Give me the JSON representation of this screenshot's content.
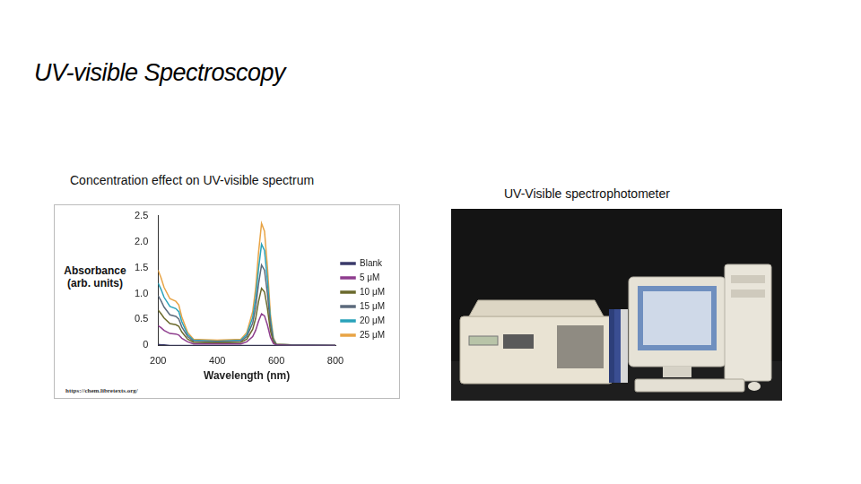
{
  "slide": {
    "title": "UV-visible Spectroscopy",
    "left_caption": "Concentration effect on UV-visible spectrum",
    "right_caption": "UV-Visible spectrophotometer",
    "chart_source": "https://chem.libretexts.org/"
  },
  "chart_data": {
    "type": "line",
    "x_label": "Wavelength (nm)",
    "y_label": "Absorbance (arb. units)",
    "x": [
      200,
      210,
      220,
      240,
      260,
      270,
      280,
      300,
      320,
      400,
      480,
      500,
      520,
      530,
      540,
      550,
      560,
      570,
      580,
      590,
      600,
      650,
      800
    ],
    "series": [
      {
        "name": "Blank",
        "color": "#3b3b6b",
        "values": [
          0.02,
          0.01,
          0.01,
          0,
          0,
          0,
          0,
          0,
          0,
          0,
          0,
          0,
          0,
          0,
          0,
          0,
          0,
          0,
          0,
          0,
          0,
          0,
          0
        ]
      },
      {
        "name": "5 μM",
        "color": "#8e3d8e",
        "values": [
          0.38,
          0.34,
          0.29,
          0.23,
          0.22,
          0.2,
          0.14,
          0.07,
          0.03,
          0.03,
          0.03,
          0.07,
          0.17,
          0.29,
          0.47,
          0.61,
          0.57,
          0.39,
          0.16,
          0.04,
          0.01,
          0,
          0
        ]
      },
      {
        "name": "10 μM",
        "color": "#6b6a2c",
        "values": [
          0.68,
          0.61,
          0.53,
          0.42,
          0.4,
          0.37,
          0.26,
          0.12,
          0.06,
          0.05,
          0.06,
          0.12,
          0.31,
          0.52,
          0.85,
          1.1,
          1.03,
          0.71,
          0.28,
          0.07,
          0.01,
          0,
          0
        ]
      },
      {
        "name": "15 μM",
        "color": "#5c6b7c",
        "values": [
          0.96,
          0.86,
          0.74,
          0.59,
          0.56,
          0.51,
          0.36,
          0.17,
          0.08,
          0.07,
          0.08,
          0.17,
          0.43,
          0.73,
          1.19,
          1.55,
          1.45,
          0.99,
          0.4,
          0.1,
          0.02,
          0.01,
          0
        ]
      },
      {
        "name": "20 μM",
        "color": "#2aa3bb",
        "values": [
          1.2,
          1.08,
          0.93,
          0.75,
          0.71,
          0.65,
          0.46,
          0.21,
          0.1,
          0.08,
          0.1,
          0.21,
          0.54,
          0.91,
          1.49,
          1.95,
          1.83,
          1.25,
          0.5,
          0.12,
          0.02,
          0.01,
          0
        ]
      },
      {
        "name": "25 μM",
        "color": "#e8a446",
        "values": [
          1.45,
          1.3,
          1.12,
          0.9,
          0.85,
          0.78,
          0.55,
          0.25,
          0.12,
          0.1,
          0.12,
          0.25,
          0.65,
          1.1,
          1.8,
          2.35,
          2.2,
          1.5,
          0.6,
          0.15,
          0.03,
          0.01,
          0
        ]
      }
    ],
    "xlim": [
      200,
      800
    ],
    "xticks": [
      200,
      400,
      600,
      800
    ],
    "ylim": [
      0,
      2.5
    ],
    "yticks": [
      0,
      0.5,
      {
        "value": 1,
        "label": "1.0"
      },
      1.5,
      {
        "value": 2,
        "label": "2.0"
      },
      2.5
    ],
    "grid": false,
    "legend": "right"
  }
}
